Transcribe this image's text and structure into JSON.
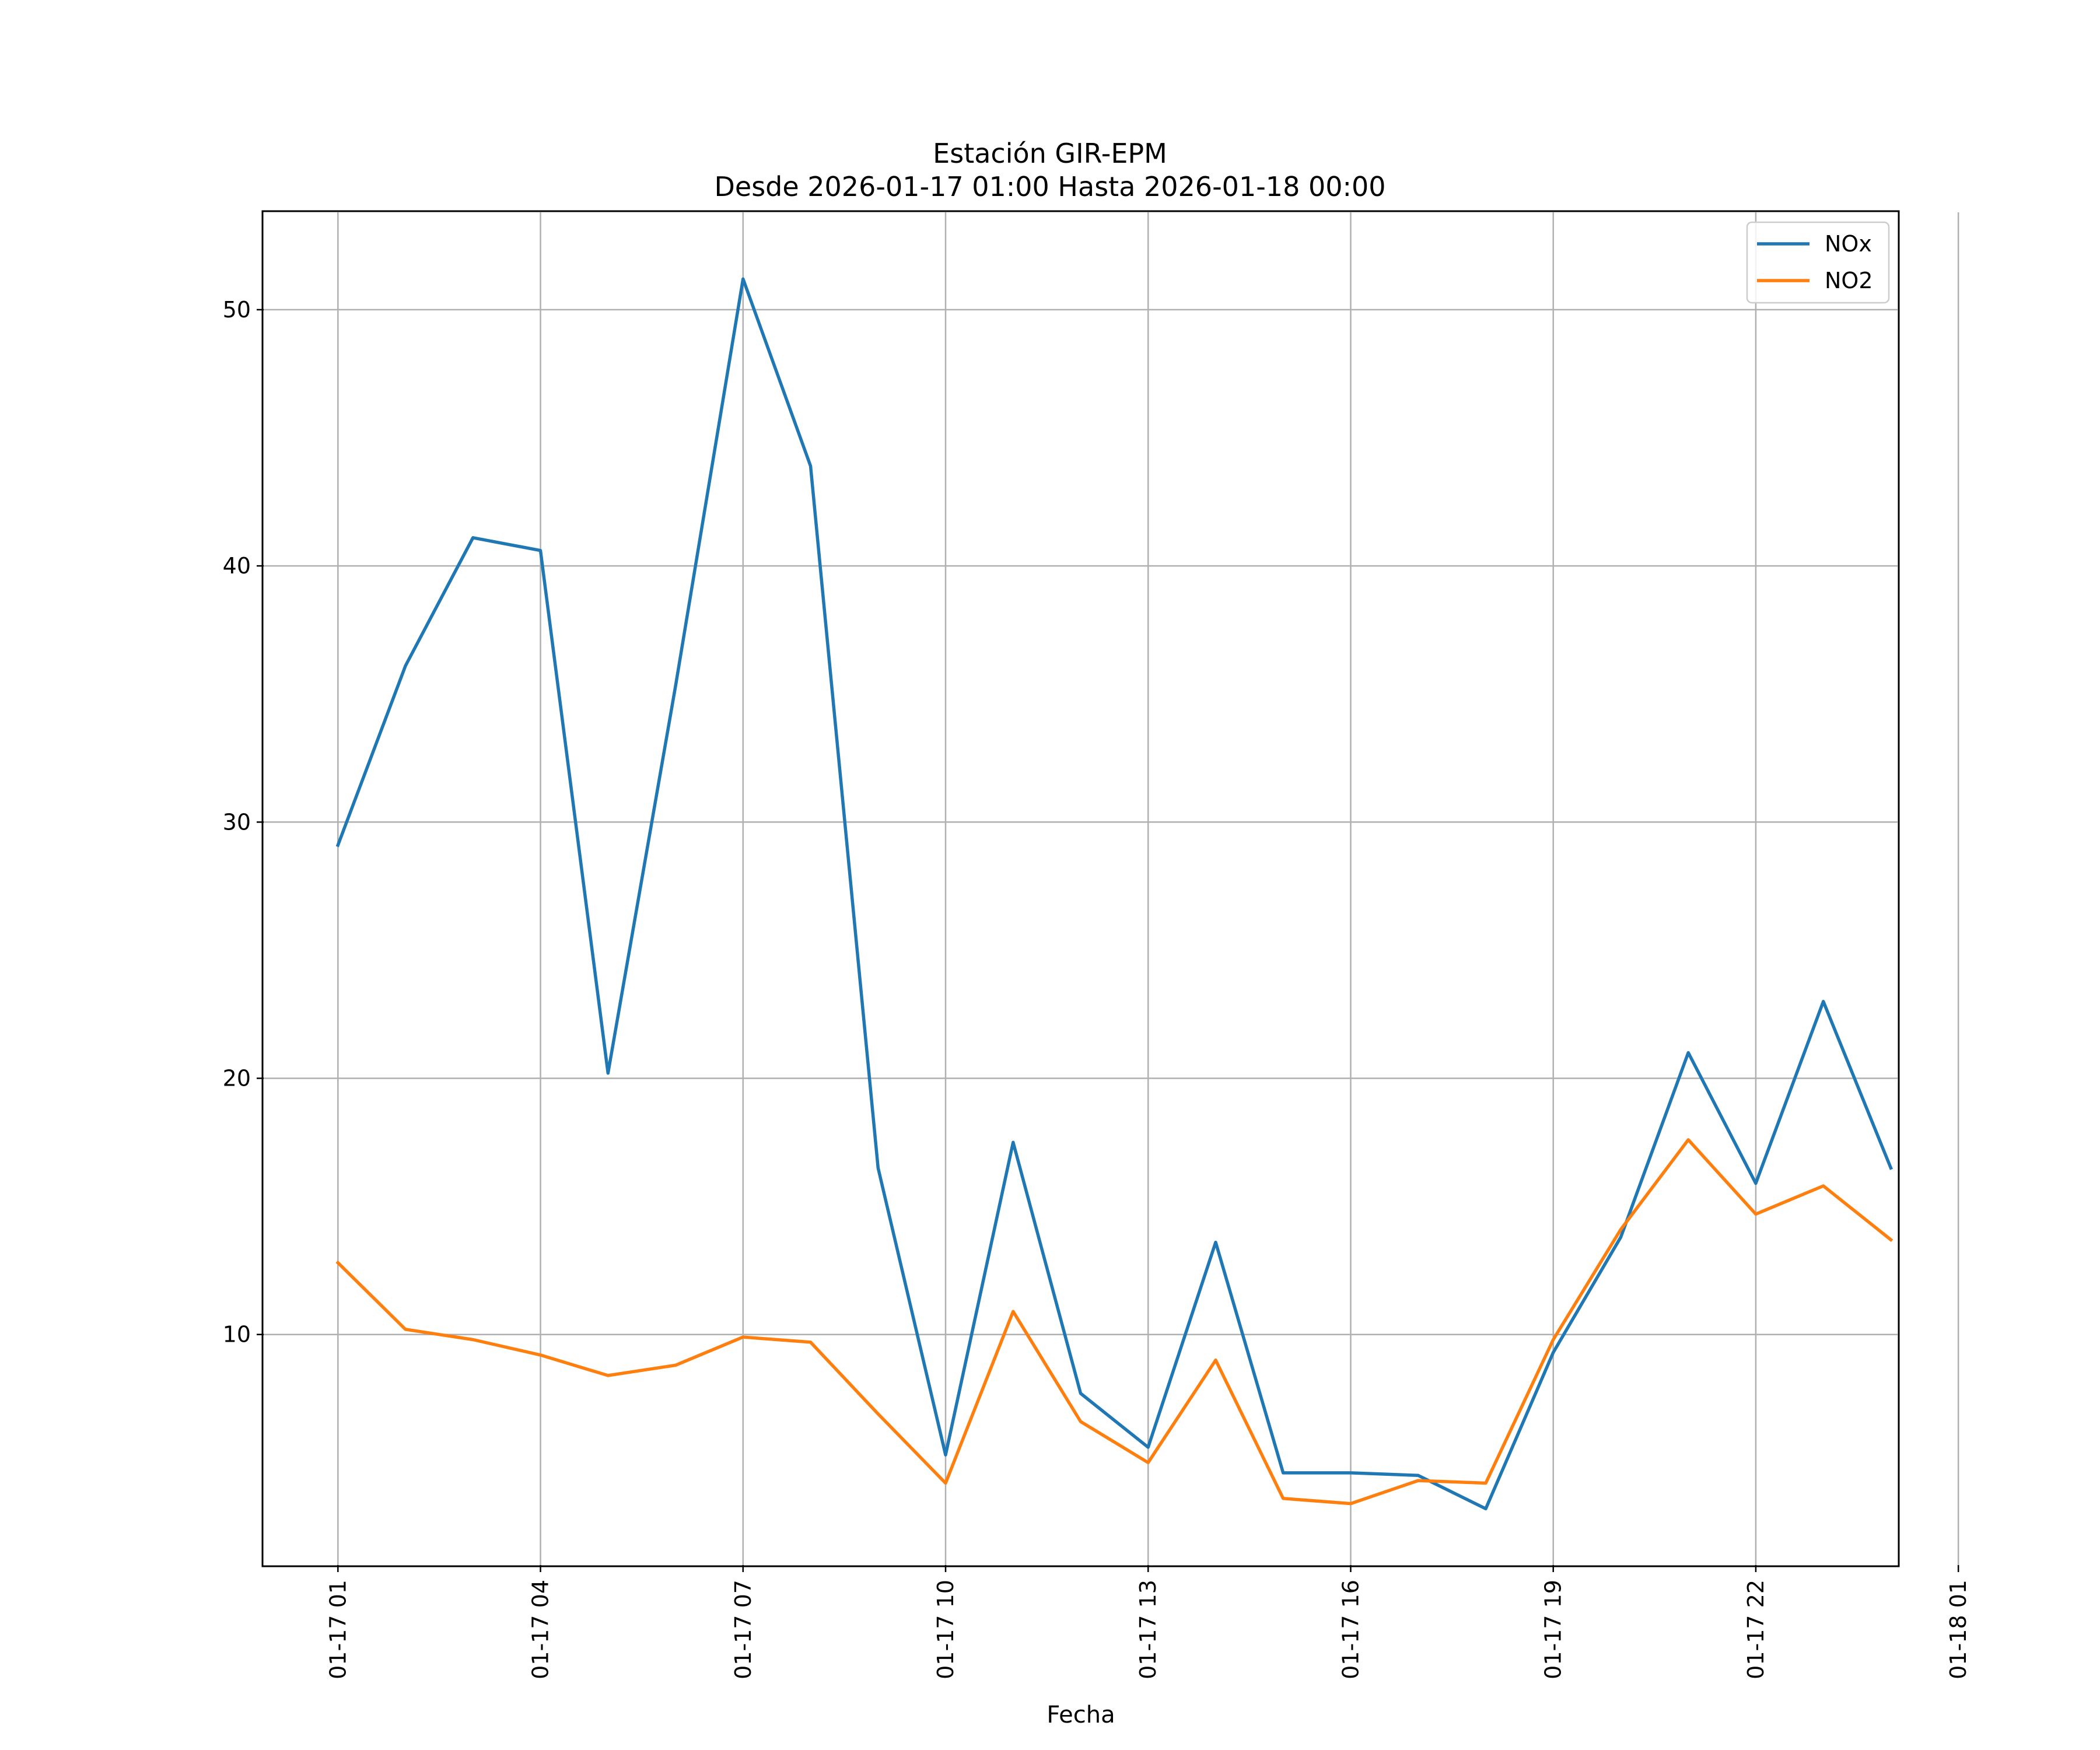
{
  "chart_data": {
    "type": "line",
    "title": "Estación GIR-EPM",
    "subtitle": "Desde 2026-01-17 01:00 Hasta 2026-01-18 00:00",
    "xlabel": "Fecha",
    "ylabel": "",
    "x_hours": [
      1,
      2,
      3,
      4,
      5,
      6,
      7,
      8,
      9,
      10,
      11,
      12,
      13,
      14,
      15,
      16,
      17,
      18,
      19,
      20,
      21,
      22,
      23,
      24
    ],
    "xlim": [
      -0.1,
      24.1
    ],
    "ylim": [
      1,
      53.8
    ],
    "x_ticks": [
      {
        "hour": 1,
        "label": "01-17 01"
      },
      {
        "hour": 4,
        "label": "01-17 04"
      },
      {
        "hour": 7,
        "label": "01-17 07"
      },
      {
        "hour": 10,
        "label": "01-17 10"
      },
      {
        "hour": 13,
        "label": "01-17 13"
      },
      {
        "hour": 16,
        "label": "01-17 16"
      },
      {
        "hour": 19,
        "label": "01-17 19"
      },
      {
        "hour": 22,
        "label": "01-17 22"
      },
      {
        "hour": 25,
        "label": "01-18 01"
      }
    ],
    "y_ticks": [
      10,
      20,
      30,
      40,
      50
    ],
    "grid": true,
    "legend_position": "top-right",
    "series": [
      {
        "name": "NOx",
        "color": "#1f77b4",
        "values": [
          29.1,
          36.1,
          41.1,
          40.6,
          20.2,
          35.3,
          51.2,
          43.9,
          16.5,
          5.3,
          17.5,
          7.7,
          5.6,
          13.6,
          4.6,
          4.6,
          4.5,
          3.2,
          9.3,
          13.8,
          21.0,
          15.9,
          23.0,
          16.5
        ]
      },
      {
        "name": "NO2",
        "color": "#ff7f0e",
        "values": [
          12.8,
          10.2,
          9.8,
          9.2,
          8.4,
          8.8,
          9.9,
          9.7,
          6.9,
          4.2,
          10.9,
          6.6,
          5.0,
          9.0,
          3.6,
          3.4,
          4.3,
          4.2,
          9.8,
          14.1,
          17.6,
          14.7,
          15.8,
          13.7
        ]
      }
    ]
  }
}
